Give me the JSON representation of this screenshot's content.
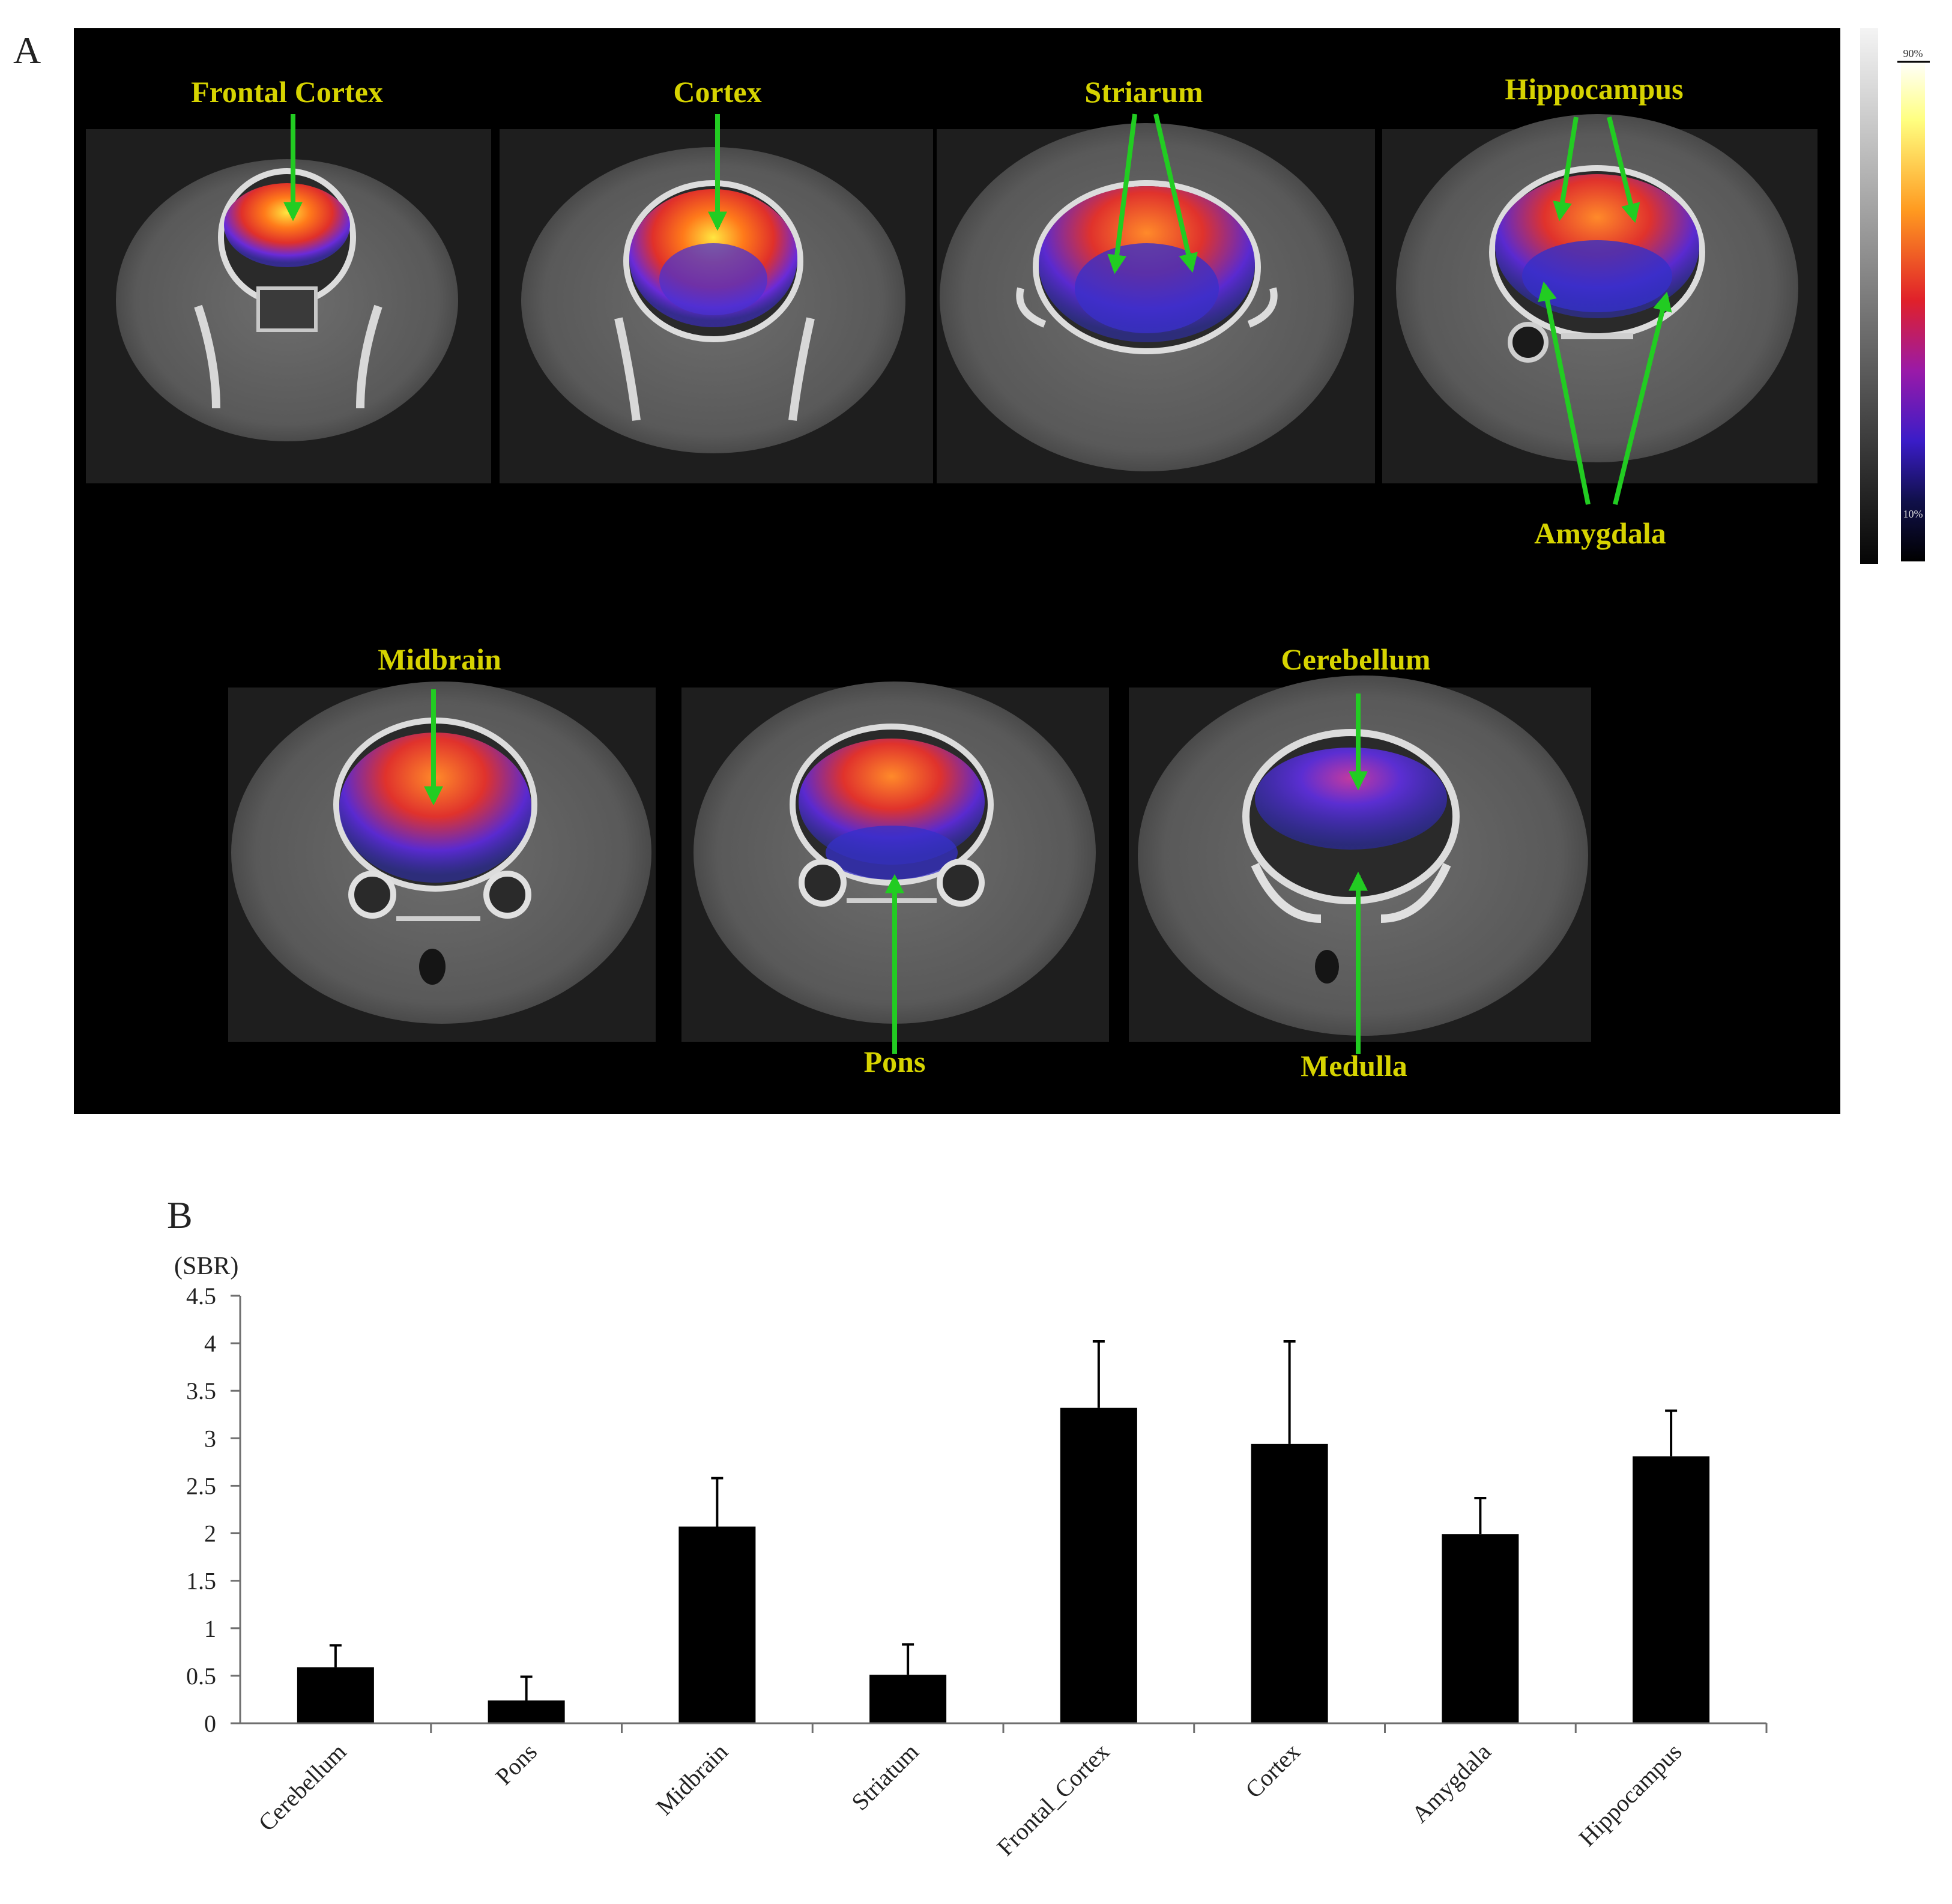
{
  "panels": {
    "a_letter": "A",
    "b_letter": "B"
  },
  "scan_labels": {
    "frontal_cortex": "Frontal Cortex",
    "cortex": "Cortex",
    "striarum": "Striarum",
    "hippocampus": "Hippocampus",
    "amygdala": "Amygdala",
    "midbrain": "Midbrain",
    "cerebellum": "Cerebellum",
    "pons": "Pons",
    "medulla": "Medulla"
  },
  "colors": {
    "scan_background": "#000000",
    "label_text": "#d6d300",
    "arrow": "#22cc22",
    "bar": "#000000"
  },
  "colorbar": {
    "top_label": "90%",
    "bottom_label": "10%"
  },
  "chart_data": {
    "type": "bar",
    "ylabel": "(SBR)",
    "categories": [
      "Cerebellum",
      "Pons",
      "Midbrain",
      "Striatum",
      "Frontal_Cortex",
      "Cortex",
      "Amygdala",
      "Hippocampus"
    ],
    "values": [
      0.59,
      0.24,
      2.07,
      0.51,
      3.32,
      2.94,
      1.99,
      2.81
    ],
    "errors": [
      0.23,
      0.25,
      0.51,
      0.32,
      0.7,
      1.08,
      0.38,
      0.48
    ],
    "ylim": [
      0,
      4.5
    ],
    "yticks": [
      "0",
      "0.5",
      "1",
      "1.5",
      "2",
      "2.5",
      "3",
      "3.5",
      "4",
      "4.5"
    ],
    "grid": false
  }
}
